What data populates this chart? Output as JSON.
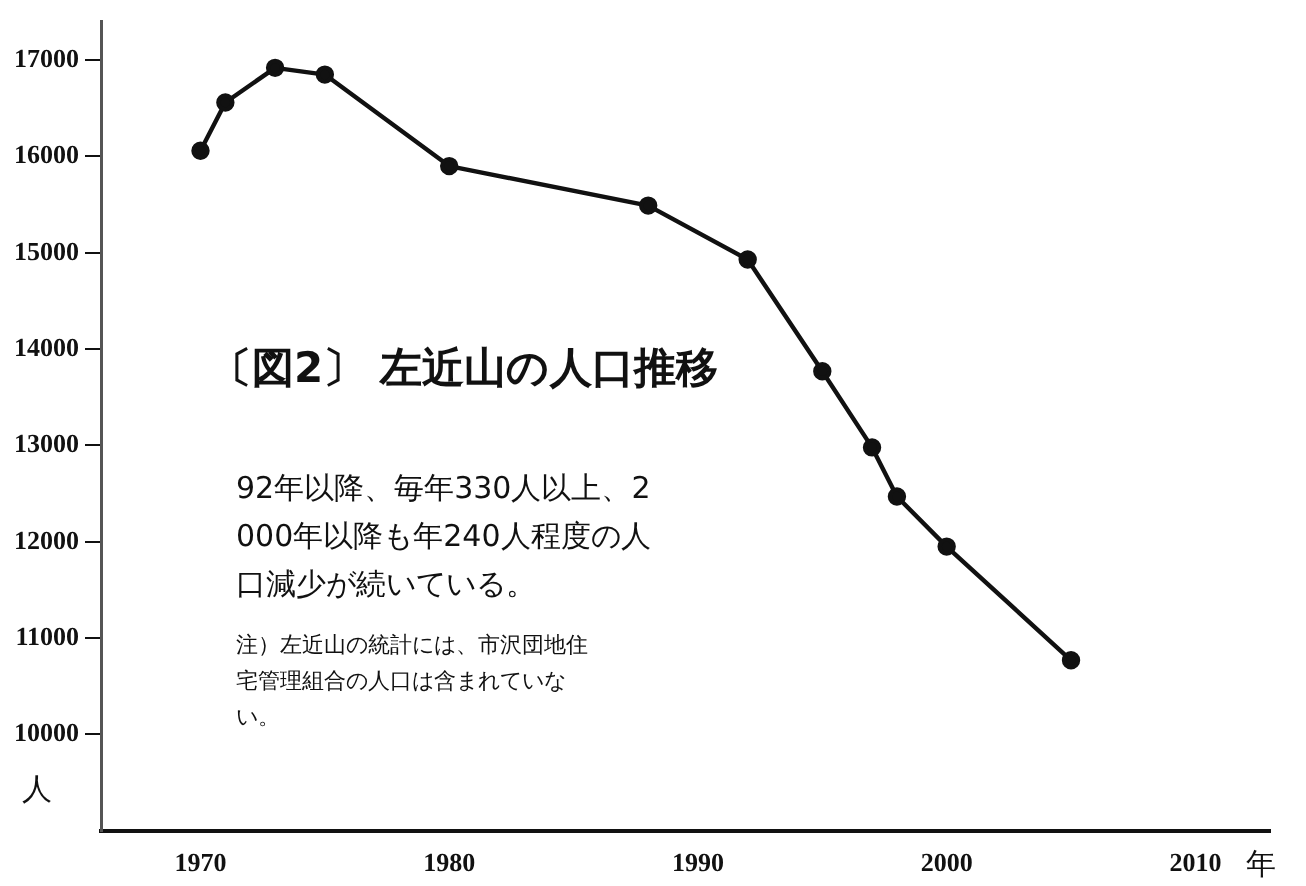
{
  "chart_data": {
    "type": "line",
    "title": "〔図2〕 左近山の人口推移",
    "xlabel": "年",
    "ylabel": "人",
    "annotations": [
      "92年以降、毎年330人以上、2000年以降も年240人程度の人口減少が続いている。",
      "注）左近山の統計には、市沢団地住宅管理組合の人口は含まれていない。"
    ],
    "x": [
      1970,
      1971,
      1973,
      1975,
      1980,
      1988,
      1992,
      1995,
      1997,
      1998,
      2000,
      2005
    ],
    "series": [
      {
        "color": "#111111",
        "values": [
          16060,
          16560,
          16920,
          16850,
          15900,
          15490,
          14930,
          13770,
          12980,
          12470,
          11950,
          10770
        ]
      }
    ],
    "xlim": [
      1966,
      2013
    ],
    "xticks": [
      1970,
      1980,
      1990,
      2000,
      2010
    ],
    "ylim": [
      9000,
      17400
    ],
    "yticks": [
      10000,
      11000,
      12000,
      13000,
      14000,
      15000,
      16000,
      17000
    ],
    "grid": false,
    "legend": false,
    "marker": "circle",
    "line_style": "solid"
  }
}
